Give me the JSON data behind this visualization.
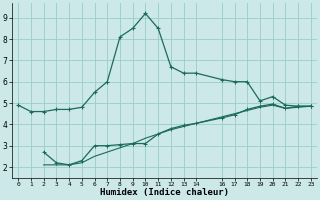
{
  "xlabel": "Humidex (Indice chaleur)",
  "bg_color": "#cce8e8",
  "grid_color": "#99cccc",
  "line_color": "#1a6b5a",
  "xlim": [
    -0.5,
    23.5
  ],
  "ylim": [
    1.5,
    9.7
  ],
  "xticks": [
    0,
    1,
    2,
    3,
    4,
    5,
    6,
    7,
    8,
    9,
    10,
    11,
    12,
    13,
    14,
    16,
    17,
    18,
    19,
    20,
    21,
    22,
    23
  ],
  "yticks": [
    2,
    3,
    4,
    5,
    6,
    7,
    8,
    9
  ],
  "series1_x": [
    0,
    1,
    2,
    3,
    4,
    5,
    6,
    7,
    8,
    9,
    10,
    11,
    12,
    13,
    14,
    16,
    17,
    18,
    19,
    20,
    21,
    22,
    23
  ],
  "series1_y": [
    4.9,
    4.6,
    4.6,
    4.7,
    4.7,
    4.8,
    5.5,
    6.0,
    8.1,
    8.5,
    9.2,
    8.5,
    6.7,
    6.4,
    6.4,
    6.1,
    6.0,
    6.0,
    5.1,
    5.3,
    4.9,
    4.85,
    4.85
  ],
  "series2_x": [
    2,
    3,
    4,
    5,
    6,
    7,
    8,
    9,
    10,
    11,
    12,
    13,
    14,
    16,
    17,
    18,
    19,
    20,
    21,
    22,
    23
  ],
  "series2_y": [
    2.7,
    2.2,
    2.1,
    2.3,
    3.0,
    3.0,
    3.05,
    3.1,
    3.1,
    3.55,
    3.8,
    3.95,
    4.05,
    4.3,
    4.45,
    4.7,
    4.85,
    4.95,
    4.75,
    4.85,
    4.85
  ],
  "series3_x": [
    2,
    3,
    4,
    5,
    6,
    7,
    8,
    9,
    10,
    11,
    12,
    13,
    14,
    16,
    17,
    18,
    19,
    20,
    21,
    22,
    23
  ],
  "series3_y": [
    2.1,
    2.1,
    2.1,
    2.2,
    2.5,
    2.7,
    2.9,
    3.1,
    3.35,
    3.55,
    3.75,
    3.9,
    4.05,
    4.35,
    4.5,
    4.65,
    4.8,
    4.9,
    4.75,
    4.8,
    4.85
  ]
}
